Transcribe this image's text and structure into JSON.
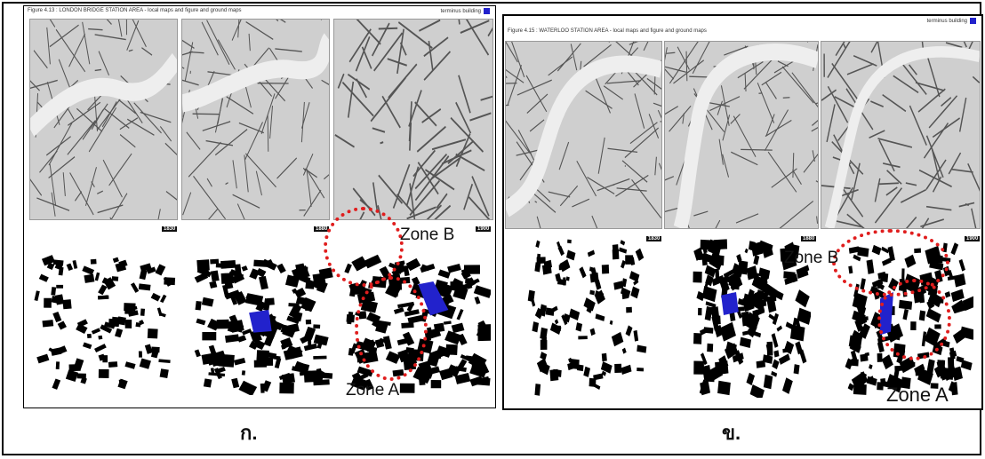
{
  "panel_a": {
    "caption": "Figure 4.13 : LONDON BRIDGE STATION AREA - local maps and figure and ground maps",
    "legend": "terminus building",
    "years": [
      "1830",
      "1880",
      "1900"
    ],
    "zone_a": "Zone A",
    "zone_b": "Zone B",
    "label": "ก."
  },
  "panel_b": {
    "caption": "Figure 4.15 : WATERLOO STATION AREA - local maps and figure and ground maps",
    "legend": "terminus building",
    "years": [
      "1830",
      "1880",
      "1900"
    ],
    "zone_a": "Zone A",
    "zone_b": "Zone B",
    "label": "ข."
  },
  "colors": {
    "terminus": "#2222cc",
    "zone_ring": "#e01e1e",
    "building": "#000000"
  }
}
